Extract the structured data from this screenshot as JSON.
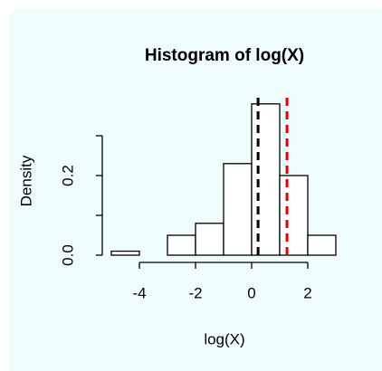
{
  "chart_data": {
    "type": "histogram",
    "title": "Histogram of log(X)",
    "x_label": "log(X)",
    "y_label": "Density",
    "bins": [
      -5,
      -4,
      -3,
      -2,
      -1,
      0,
      1,
      2,
      3
    ],
    "values": [
      0.01,
      0,
      0.05,
      0.08,
      0.23,
      0.38,
      0.2,
      0.05
    ],
    "color": "#ffffff",
    "edge_color": "#000000",
    "xlim": [
      -5.2,
      3.2
    ],
    "xticks": [
      -4,
      -2,
      0,
      2
    ],
    "ylim": [
      0,
      0.4
    ],
    "yticks": [
      {
        "value": 0,
        "label": "0.0"
      },
      {
        "value": 0.2,
        "label": "0.2"
      }
    ],
    "yminorticks": [
      0.1,
      0.3
    ],
    "vlines": [
      {
        "value": 0.23,
        "color": "#000000"
      },
      {
        "value": 1.26,
        "color": "#e00000"
      }
    ]
  }
}
